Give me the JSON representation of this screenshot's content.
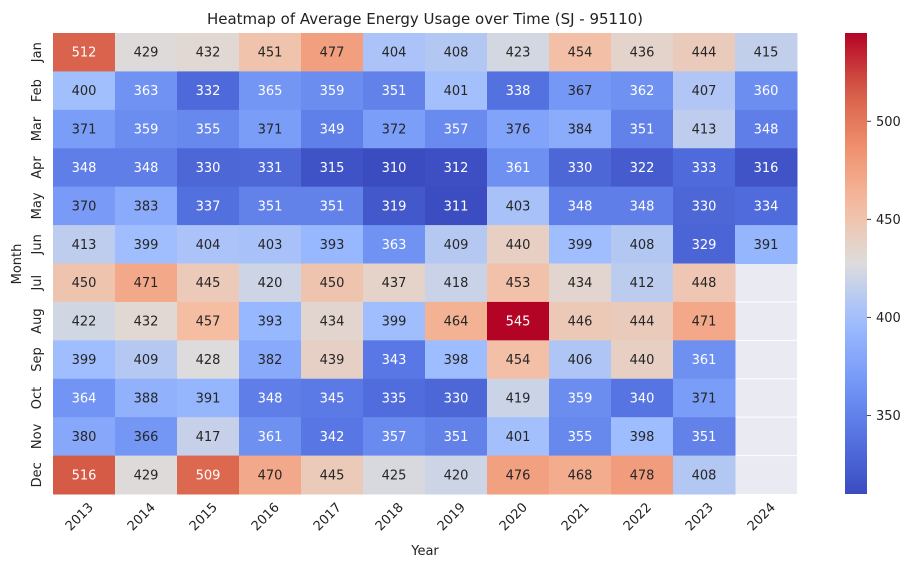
{
  "chart_data": {
    "type": "heatmap",
    "title": "Heatmap of Average Energy Usage over Time (SJ - 95110)",
    "xlabel": "Year",
    "ylabel": "Month",
    "x_categories": [
      "2013",
      "2014",
      "2015",
      "2016",
      "2017",
      "2018",
      "2019",
      "2020",
      "2021",
      "2022",
      "2023",
      "2024"
    ],
    "y_categories": [
      "Jan",
      "Feb",
      "Mar",
      "Apr",
      "May",
      "Jun",
      "Jul",
      "Aug",
      "Sep",
      "Oct",
      "Nov",
      "Dec"
    ],
    "values": [
      [
        512,
        429,
        432,
        451,
        477,
        404,
        408,
        423,
        454,
        436,
        444,
        415
      ],
      [
        400,
        363,
        332,
        365,
        359,
        351,
        401,
        338,
        367,
        362,
        407,
        360
      ],
      [
        371,
        359,
        355,
        371,
        349,
        372,
        357,
        376,
        384,
        351,
        413,
        348
      ],
      [
        348,
        348,
        330,
        331,
        315,
        310,
        312,
        361,
        330,
        322,
        333,
        316
      ],
      [
        370,
        383,
        337,
        351,
        351,
        319,
        311,
        403,
        348,
        348,
        330,
        334
      ],
      [
        413,
        399,
        404,
        403,
        393,
        363,
        409,
        440,
        399,
        408,
        329,
        391
      ],
      [
        450,
        471,
        445,
        420,
        450,
        437,
        418,
        453,
        434,
        412,
        448,
        null
      ],
      [
        422,
        432,
        457,
        393,
        434,
        399,
        464,
        545,
        446,
        444,
        471,
        null
      ],
      [
        399,
        409,
        428,
        382,
        439,
        343,
        398,
        454,
        406,
        440,
        361,
        null
      ],
      [
        364,
        388,
        391,
        348,
        345,
        335,
        330,
        419,
        359,
        340,
        371,
        null
      ],
      [
        380,
        366,
        417,
        361,
        342,
        357,
        351,
        401,
        355,
        398,
        351,
        null
      ],
      [
        516,
        429,
        509,
        470,
        445,
        425,
        420,
        476,
        468,
        478,
        408,
        null
      ]
    ],
    "colormap": "coolwarm",
    "vmin": 310,
    "vmax": 545,
    "colorbar_ticks": [
      350,
      400,
      450,
      500
    ],
    "missing_color": "#eaeaf2",
    "grid": true
  }
}
